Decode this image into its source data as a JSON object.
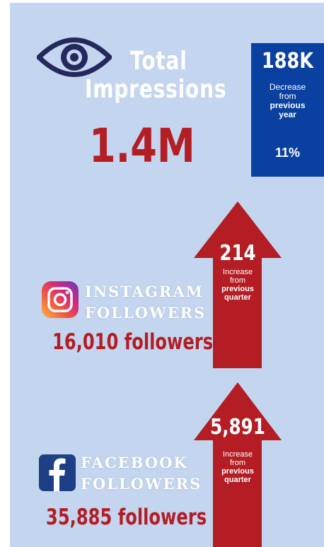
{
  "impressions": {
    "title_line1": "Total",
    "title_line2": "Impressions",
    "value": "1.4M",
    "icon": "eye-icon",
    "change_box": {
      "value": "188K",
      "lines": [
        "Decrease",
        "from",
        "previous",
        "year"
      ],
      "percent": "11%"
    }
  },
  "instagram": {
    "icon": "instagram-icon",
    "label_line1": "INSTAGRAM",
    "label_line2": "FOLLOWERS",
    "followers": "16,010 followers",
    "change": {
      "value": "214",
      "lines": [
        "Increase",
        "from",
        "previous",
        "quarter"
      ]
    }
  },
  "facebook": {
    "icon": "facebook-icon",
    "label_line1": "FACEBOOK",
    "label_line2": "FOLLOWERS",
    "followers": "35,885 followers",
    "change": {
      "value": "5,891",
      "lines": [
        "Increase",
        "from",
        "previous",
        "quarter"
      ]
    }
  },
  "colors": {
    "background": "#c3d5ef",
    "accent_red": "#b31d23",
    "box_blue": "#0a40a0",
    "icon_navy": "#25285c",
    "facebook_blue": "#1d3f86"
  }
}
